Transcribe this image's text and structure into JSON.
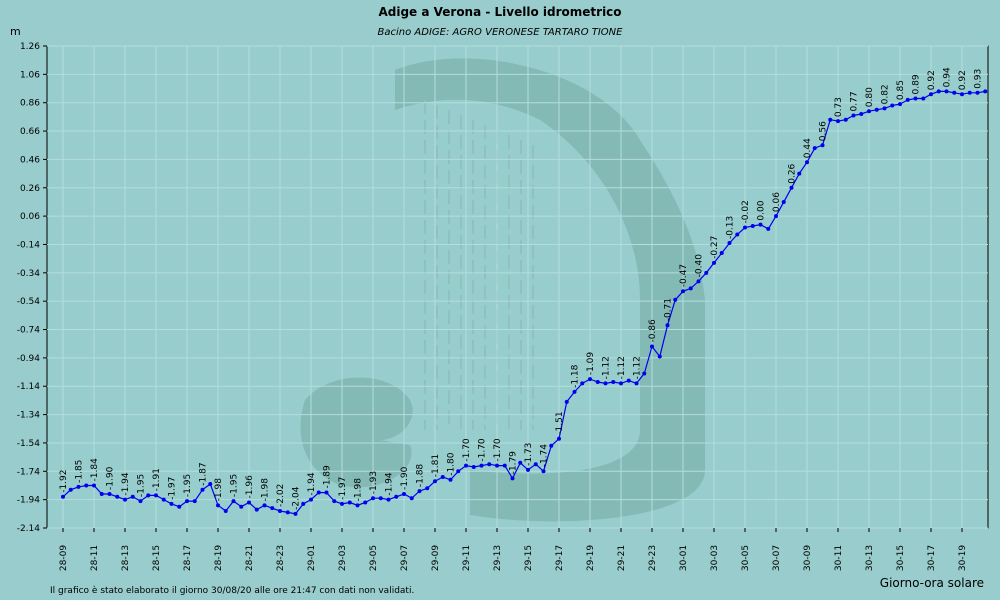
{
  "chart_data": {
    "type": "line",
    "title": "Adige a Verona - Livello idrometrico",
    "subtitle": "Bacino ADIGE: AGRO VERONESE TARTARO TIONE",
    "ylabel": "m",
    "xlabel": "Giorno-ora solare",
    "footnote": "Il grafico è stato elaborato il giorno 30/08/20 alle ore 21:47 con dati non validati.",
    "ylim": [
      -2.14,
      1.26
    ],
    "yticks": [
      "1.26",
      "1.06",
      "0.86",
      "0.66",
      "0.46",
      "0.26",
      "0.06",
      "-0.14",
      "-0.34",
      "-0.54",
      "-0.74",
      "-0.94",
      "-1.14",
      "-1.34",
      "-1.54",
      "-1.74",
      "-1.94",
      "-2.14"
    ],
    "xticks": [
      "28-09",
      "28-11",
      "28-13",
      "28-15",
      "28-17",
      "28-19",
      "28-21",
      "28-23",
      "29-01",
      "29-03",
      "29-05",
      "29-07",
      "29-09",
      "29-11",
      "29-13",
      "29-15",
      "29-17",
      "29-19",
      "29-21",
      "29-23",
      "30-01",
      "30-03",
      "30-05",
      "30-07",
      "30-09",
      "30-11",
      "30-13",
      "30-15",
      "30-17",
      "30-19"
    ],
    "tick_step_hours": 2,
    "point_step_hours": 0.5,
    "grid": true,
    "colors": {
      "line": "#0000ee",
      "plot_bg": "#97cdcd",
      "frame_bg": "#99cccc",
      "logo": "#7fb5b0",
      "grid": "#b5dddd"
    },
    "series": [
      {
        "values": [
          -1.92,
          -1.87,
          -1.85,
          -1.84,
          -1.84,
          -1.9,
          -1.9,
          -1.92,
          -1.94,
          -1.92,
          -1.95,
          -1.91,
          -1.91,
          -1.94,
          -1.97,
          -1.99,
          -1.95,
          -1.95,
          -1.87,
          -1.83,
          -1.98,
          -2.02,
          -1.95,
          -1.99,
          -1.96,
          -2.01,
          -1.98,
          -2.0,
          -2.02,
          -2.03,
          -2.04,
          -1.97,
          -1.94,
          -1.89,
          -1.89,
          -1.95,
          -1.97,
          -1.96,
          -1.98,
          -1.96,
          -1.93,
          -1.93,
          -1.94,
          -1.92,
          -1.9,
          -1.93,
          -1.88,
          -1.86,
          -1.81,
          -1.78,
          -1.8,
          -1.74,
          -1.7,
          -1.71,
          -1.7,
          -1.69,
          -1.7,
          -1.7,
          -1.79,
          -1.68,
          -1.73,
          -1.69,
          -1.74,
          -1.56,
          -1.51,
          -1.25,
          -1.18,
          -1.12,
          -1.09,
          -1.11,
          -1.12,
          -1.11,
          -1.12,
          -1.1,
          -1.12,
          -1.05,
          -0.86,
          -0.93,
          -0.71,
          -0.53,
          -0.47,
          -0.45,
          -0.4,
          -0.34,
          -0.27,
          -0.2,
          -0.13,
          -0.07,
          -0.02,
          -0.01,
          0.0,
          -0.03,
          0.06,
          0.16,
          0.26,
          0.36,
          0.44,
          0.54,
          0.56,
          0.74,
          0.73,
          0.74,
          0.77,
          0.78,
          0.8,
          0.81,
          0.82,
          0.84,
          0.85,
          0.88,
          0.89,
          0.89,
          0.92,
          0.94,
          0.94,
          0.93,
          0.92,
          0.93,
          0.93,
          0.94
        ],
        "labels_every": 2
      }
    ]
  }
}
